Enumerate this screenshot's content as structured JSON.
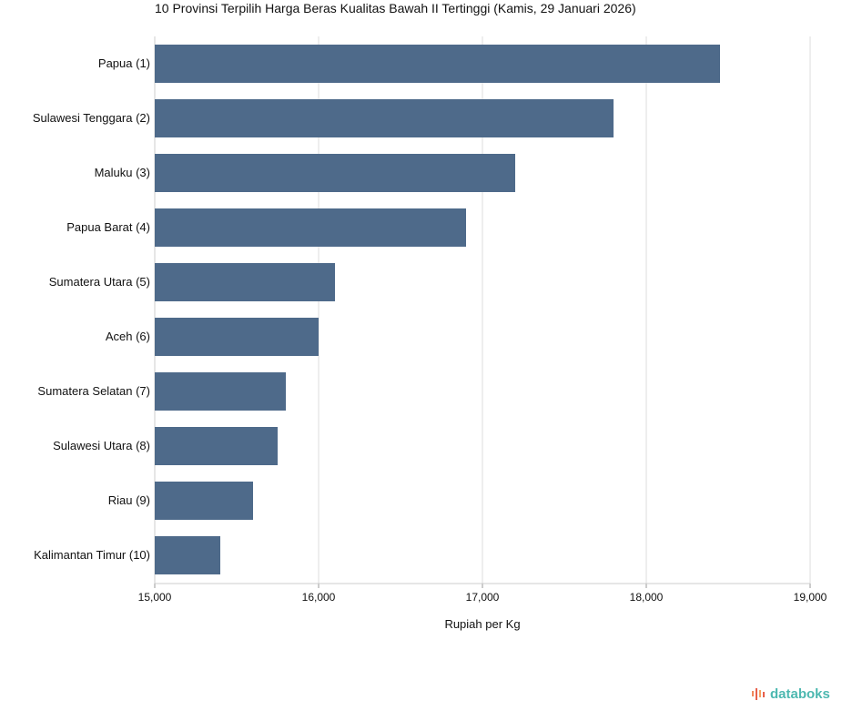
{
  "chart_data": {
    "type": "bar",
    "orientation": "horizontal",
    "title": "10 Provinsi Terpilih Harga Beras Kualitas Bawah II Tertinggi (Kamis, 29 Januari 2026)",
    "xlabel": "Rupiah per Kg",
    "ylabel": "",
    "categories": [
      "Papua (1)",
      "Sulawesi Tenggara (2)",
      "Maluku (3)",
      "Papua Barat (4)",
      "Sumatera Utara (5)",
      "Aceh (6)",
      "Sumatera Selatan (7)",
      "Sulawesi Utara (8)",
      "Riau (9)",
      "Kalimantan Timur (10)"
    ],
    "values": [
      18450,
      17800,
      17200,
      16900,
      16100,
      16000,
      15800,
      15750,
      15600,
      15400
    ],
    "xlim": [
      15000,
      19000
    ],
    "ticks": [
      15000,
      16000,
      17000,
      18000,
      19000
    ],
    "tick_labels": [
      "15,000",
      "16,000",
      "17,000",
      "18,000",
      "19,000"
    ],
    "grid": true,
    "bar_color": "#4e6a8a"
  },
  "logo": {
    "text": "databoks"
  }
}
